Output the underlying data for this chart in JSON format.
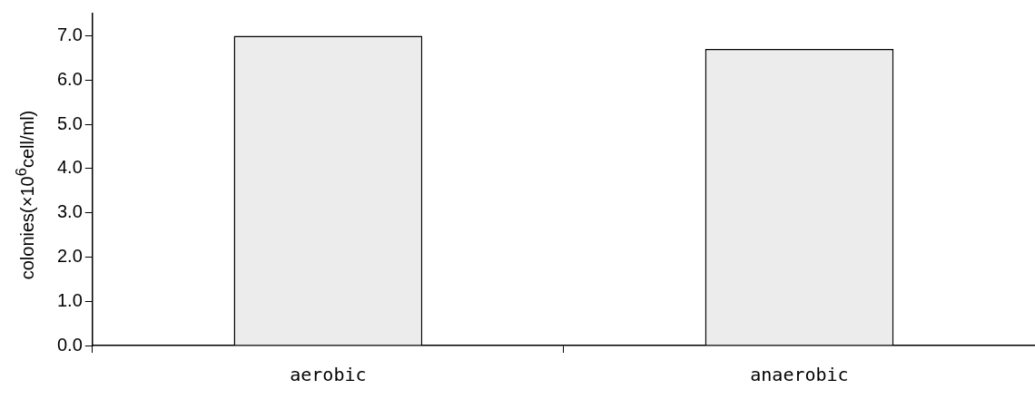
{
  "chart_data": {
    "type": "bar",
    "ylabel": "colonies(×10$^{6}$cell/ml)",
    "categories": [
      "aerobic",
      "anaerobic"
    ],
    "values": [
      7.0,
      6.7
    ],
    "color": "#ececec",
    "ylim": [
      0,
      7.5
    ],
    "yticks": [
      {
        "value": 0,
        "label": "0.0"
      },
      {
        "value": 1,
        "label": "1.0"
      },
      {
        "value": 2,
        "label": "2.0"
      },
      {
        "value": 3,
        "label": "3.0"
      },
      {
        "value": 4,
        "label": "4.0"
      },
      {
        "value": 5,
        "label": "5.0"
      },
      {
        "value": 6,
        "label": "6.0"
      },
      {
        "value": 7,
        "label": "7.0"
      }
    ],
    "grid": false,
    "legend": false
  }
}
